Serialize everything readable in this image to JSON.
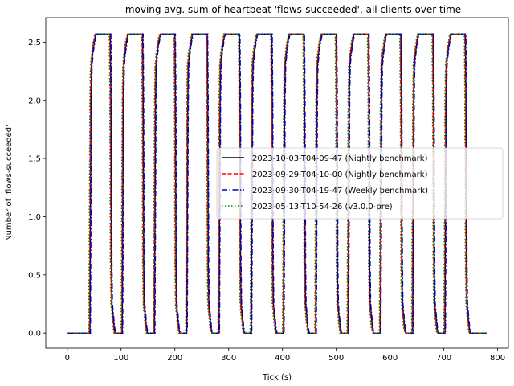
{
  "chart_data": {
    "type": "line",
    "title": "moving avg. sum of heartbeat 'flows-succeeded', all clients over time",
    "xlabel": "Tick (s)",
    "ylabel": "Number of 'flows-succeeded'",
    "xlim": [
      -40,
      820
    ],
    "ylim": [
      -0.13,
      2.71
    ],
    "xticks": [
      0,
      100,
      200,
      300,
      400,
      500,
      600,
      700,
      800
    ],
    "xtick_labels": [
      "0",
      "100",
      "200",
      "300",
      "400",
      "500",
      "600",
      "700",
      "800"
    ],
    "yticks": [
      0.0,
      0.5,
      1.0,
      1.5,
      2.0,
      2.5
    ],
    "ytick_labels": [
      "0.0",
      "0.5",
      "1.0",
      "1.5",
      "2.0",
      "2.5"
    ],
    "grid": false,
    "legend_position": "center-right",
    "waveform": {
      "max_value": 2.57,
      "period": 60,
      "first_rise": 42,
      "last_drop_start": 738,
      "end": 780
    },
    "series": [
      {
        "name": "2023-10-03-T04-09-47 (Nightly benchmark)",
        "color": "#000000",
        "dash": "solid",
        "offset": 0
      },
      {
        "name": "2023-09-29-T04-10-00 (Nightly benchmark)",
        "color": "#ff0000",
        "dash": "dashed",
        "offset": -1
      },
      {
        "name": "2023-09-30-T04-19-47 (Weekly benchmark)",
        "color": "#0000bf",
        "dash": "dashdot",
        "offset": 1
      },
      {
        "name": "2023-05-13-T10-54-26 (v3.0.0-pre)",
        "color": "#008000",
        "dash": "dotted",
        "offset": -2
      }
    ]
  }
}
